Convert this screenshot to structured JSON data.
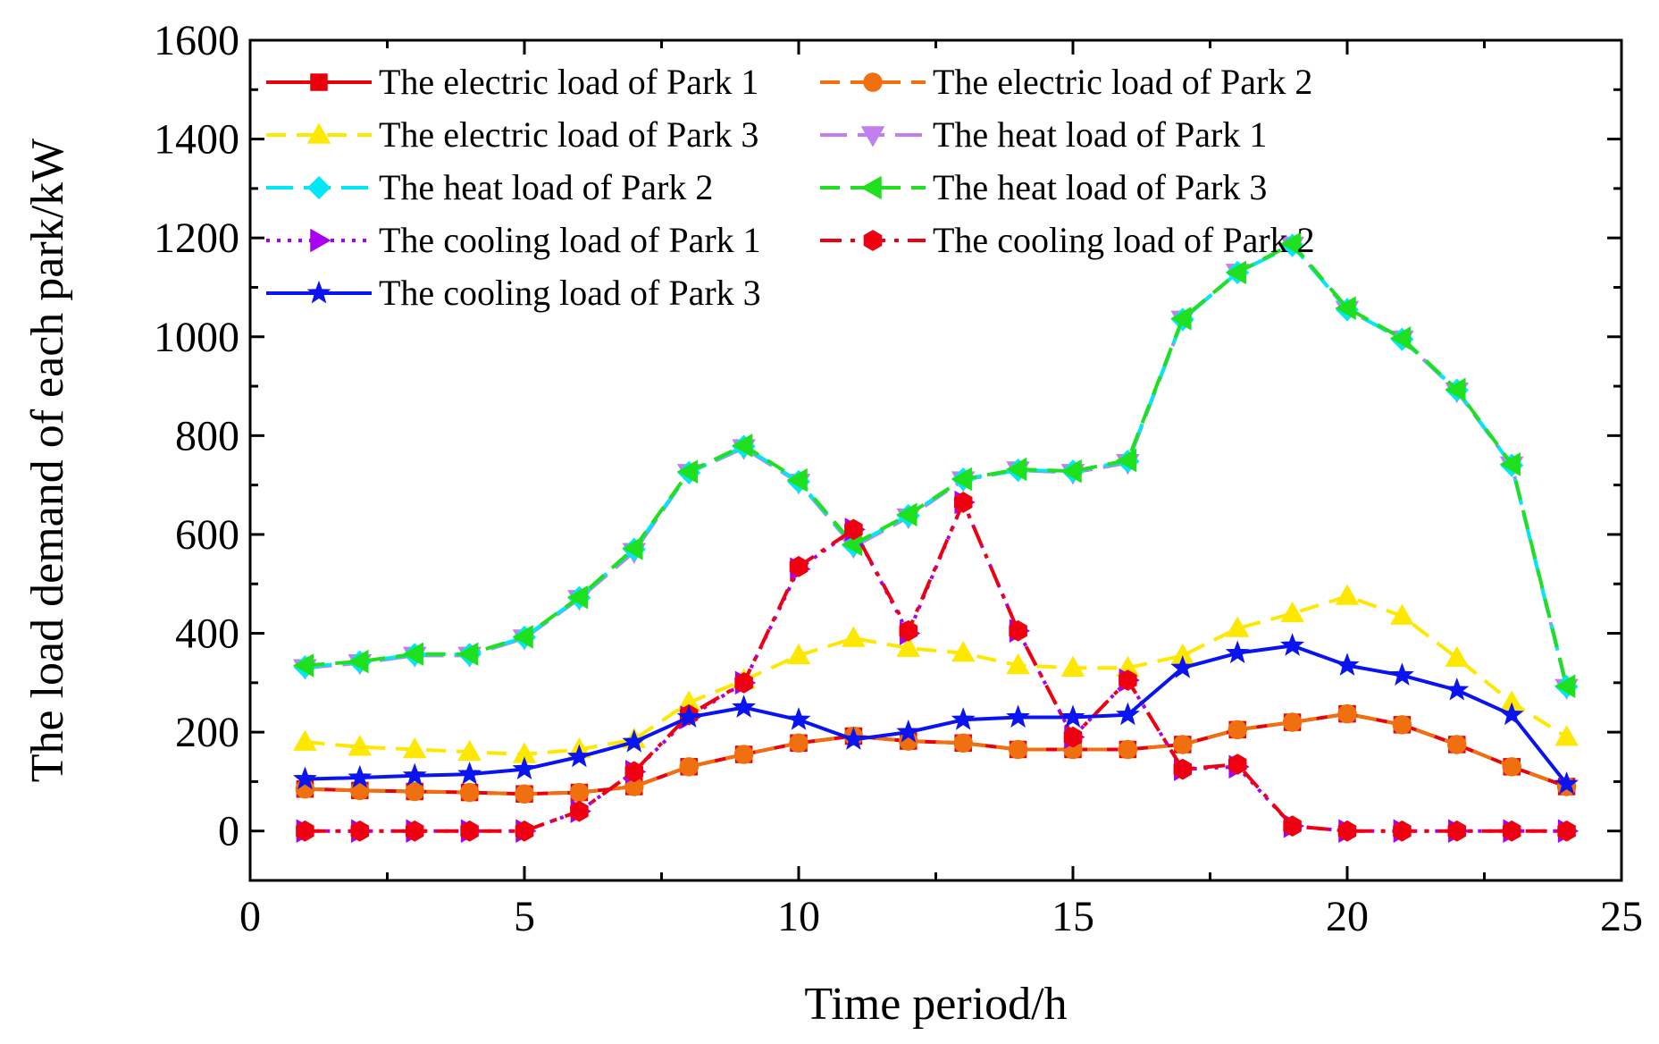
{
  "chart_data": {
    "type": "line",
    "xlabel": "Time period/h",
    "ylabel": "The load demand of each park/kW",
    "xlim": [
      0,
      25
    ],
    "ylim": [
      -100,
      1600
    ],
    "xticks": [
      0,
      5,
      10,
      15,
      20,
      25
    ],
    "yticks": [
      0,
      200,
      400,
      600,
      800,
      1000,
      1200,
      1400,
      1600
    ],
    "grid": false,
    "legend_position": "top-left",
    "x": [
      1,
      2,
      3,
      4,
      5,
      6,
      7,
      8,
      9,
      10,
      11,
      12,
      13,
      14,
      15,
      16,
      17,
      18,
      19,
      20,
      21,
      22,
      23,
      24
    ],
    "series": [
      {
        "name": "The electric load of Park 1",
        "color": "#e8000b",
        "dash": "solid",
        "marker": "square",
        "values": [
          85,
          82,
          80,
          78,
          75,
          78,
          90,
          130,
          155,
          178,
          192,
          182,
          178,
          165,
          165,
          165,
          175,
          205,
          220,
          237,
          215,
          175,
          130,
          90
        ]
      },
      {
        "name": "The electric load of Park 2",
        "color": "#f07010",
        "dash": "dash",
        "marker": "circle",
        "values": [
          85,
          82,
          80,
          78,
          75,
          78,
          90,
          130,
          155,
          178,
          192,
          182,
          178,
          165,
          165,
          165,
          175,
          205,
          220,
          237,
          215,
          175,
          130,
          90
        ]
      },
      {
        "name": "The electric load of Park 3",
        "color": "#ffe800",
        "dash": "dash",
        "marker": "triangle-up",
        "values": [
          180,
          170,
          165,
          160,
          155,
          165,
          185,
          260,
          305,
          355,
          390,
          370,
          360,
          335,
          330,
          330,
          355,
          410,
          440,
          475,
          435,
          350,
          260,
          190
        ]
      },
      {
        "name": "The heat load of Park 1",
        "color": "#c07ef0",
        "dash": "dashlong",
        "marker": "triangle-down",
        "values": [
          330,
          340,
          355,
          355,
          390,
          470,
          565,
          725,
          775,
          705,
          575,
          635,
          710,
          730,
          725,
          745,
          1035,
          1130,
          1185,
          1055,
          995,
          890,
          740,
          290
        ]
      },
      {
        "name": "The heat load of Park 2",
        "color": "#00e8f8",
        "dash": "dashlong",
        "marker": "diamond",
        "values": [
          332,
          342,
          357,
          357,
          392,
          472,
          570,
          725,
          778,
          707,
          578,
          638,
          712,
          730,
          728,
          748,
          1035,
          1130,
          1185,
          1055,
          995,
          892,
          740,
          292
        ]
      },
      {
        "name": "The heat load of Park 3",
        "color": "#1ee01e",
        "dash": "dash",
        "marker": "triangle-left",
        "values": [
          335,
          343,
          358,
          358,
          393,
          473,
          572,
          727,
          780,
          710,
          580,
          640,
          712,
          732,
          728,
          750,
          1037,
          1130,
          1188,
          1058,
          997,
          893,
          742,
          293
        ]
      },
      {
        "name": "The cooling load of Park 1",
        "color": "#a800f0",
        "dash": "dot",
        "marker": "triangle-right",
        "values": [
          0,
          0,
          0,
          0,
          0,
          40,
          120,
          230,
          300,
          530,
          610,
          400,
          665,
          405,
          190,
          305,
          125,
          130,
          10,
          0,
          0,
          0,
          0,
          0
        ]
      },
      {
        "name": "The cooling load of Park 2",
        "color": "#ee0010",
        "dash": "dashdot",
        "marker": "hexagon",
        "values": [
          0,
          0,
          0,
          0,
          0,
          40,
          120,
          235,
          300,
          535,
          610,
          405,
          665,
          405,
          190,
          305,
          125,
          135,
          10,
          0,
          0,
          0,
          0,
          0
        ]
      },
      {
        "name": "The cooling load of Park 3",
        "color": "#0a14f0",
        "dash": "solid",
        "marker": "star",
        "values": [
          105,
          108,
          112,
          115,
          125,
          150,
          180,
          230,
          250,
          225,
          185,
          200,
          225,
          230,
          230,
          235,
          330,
          360,
          375,
          335,
          315,
          285,
          235,
          95
        ]
      }
    ]
  }
}
